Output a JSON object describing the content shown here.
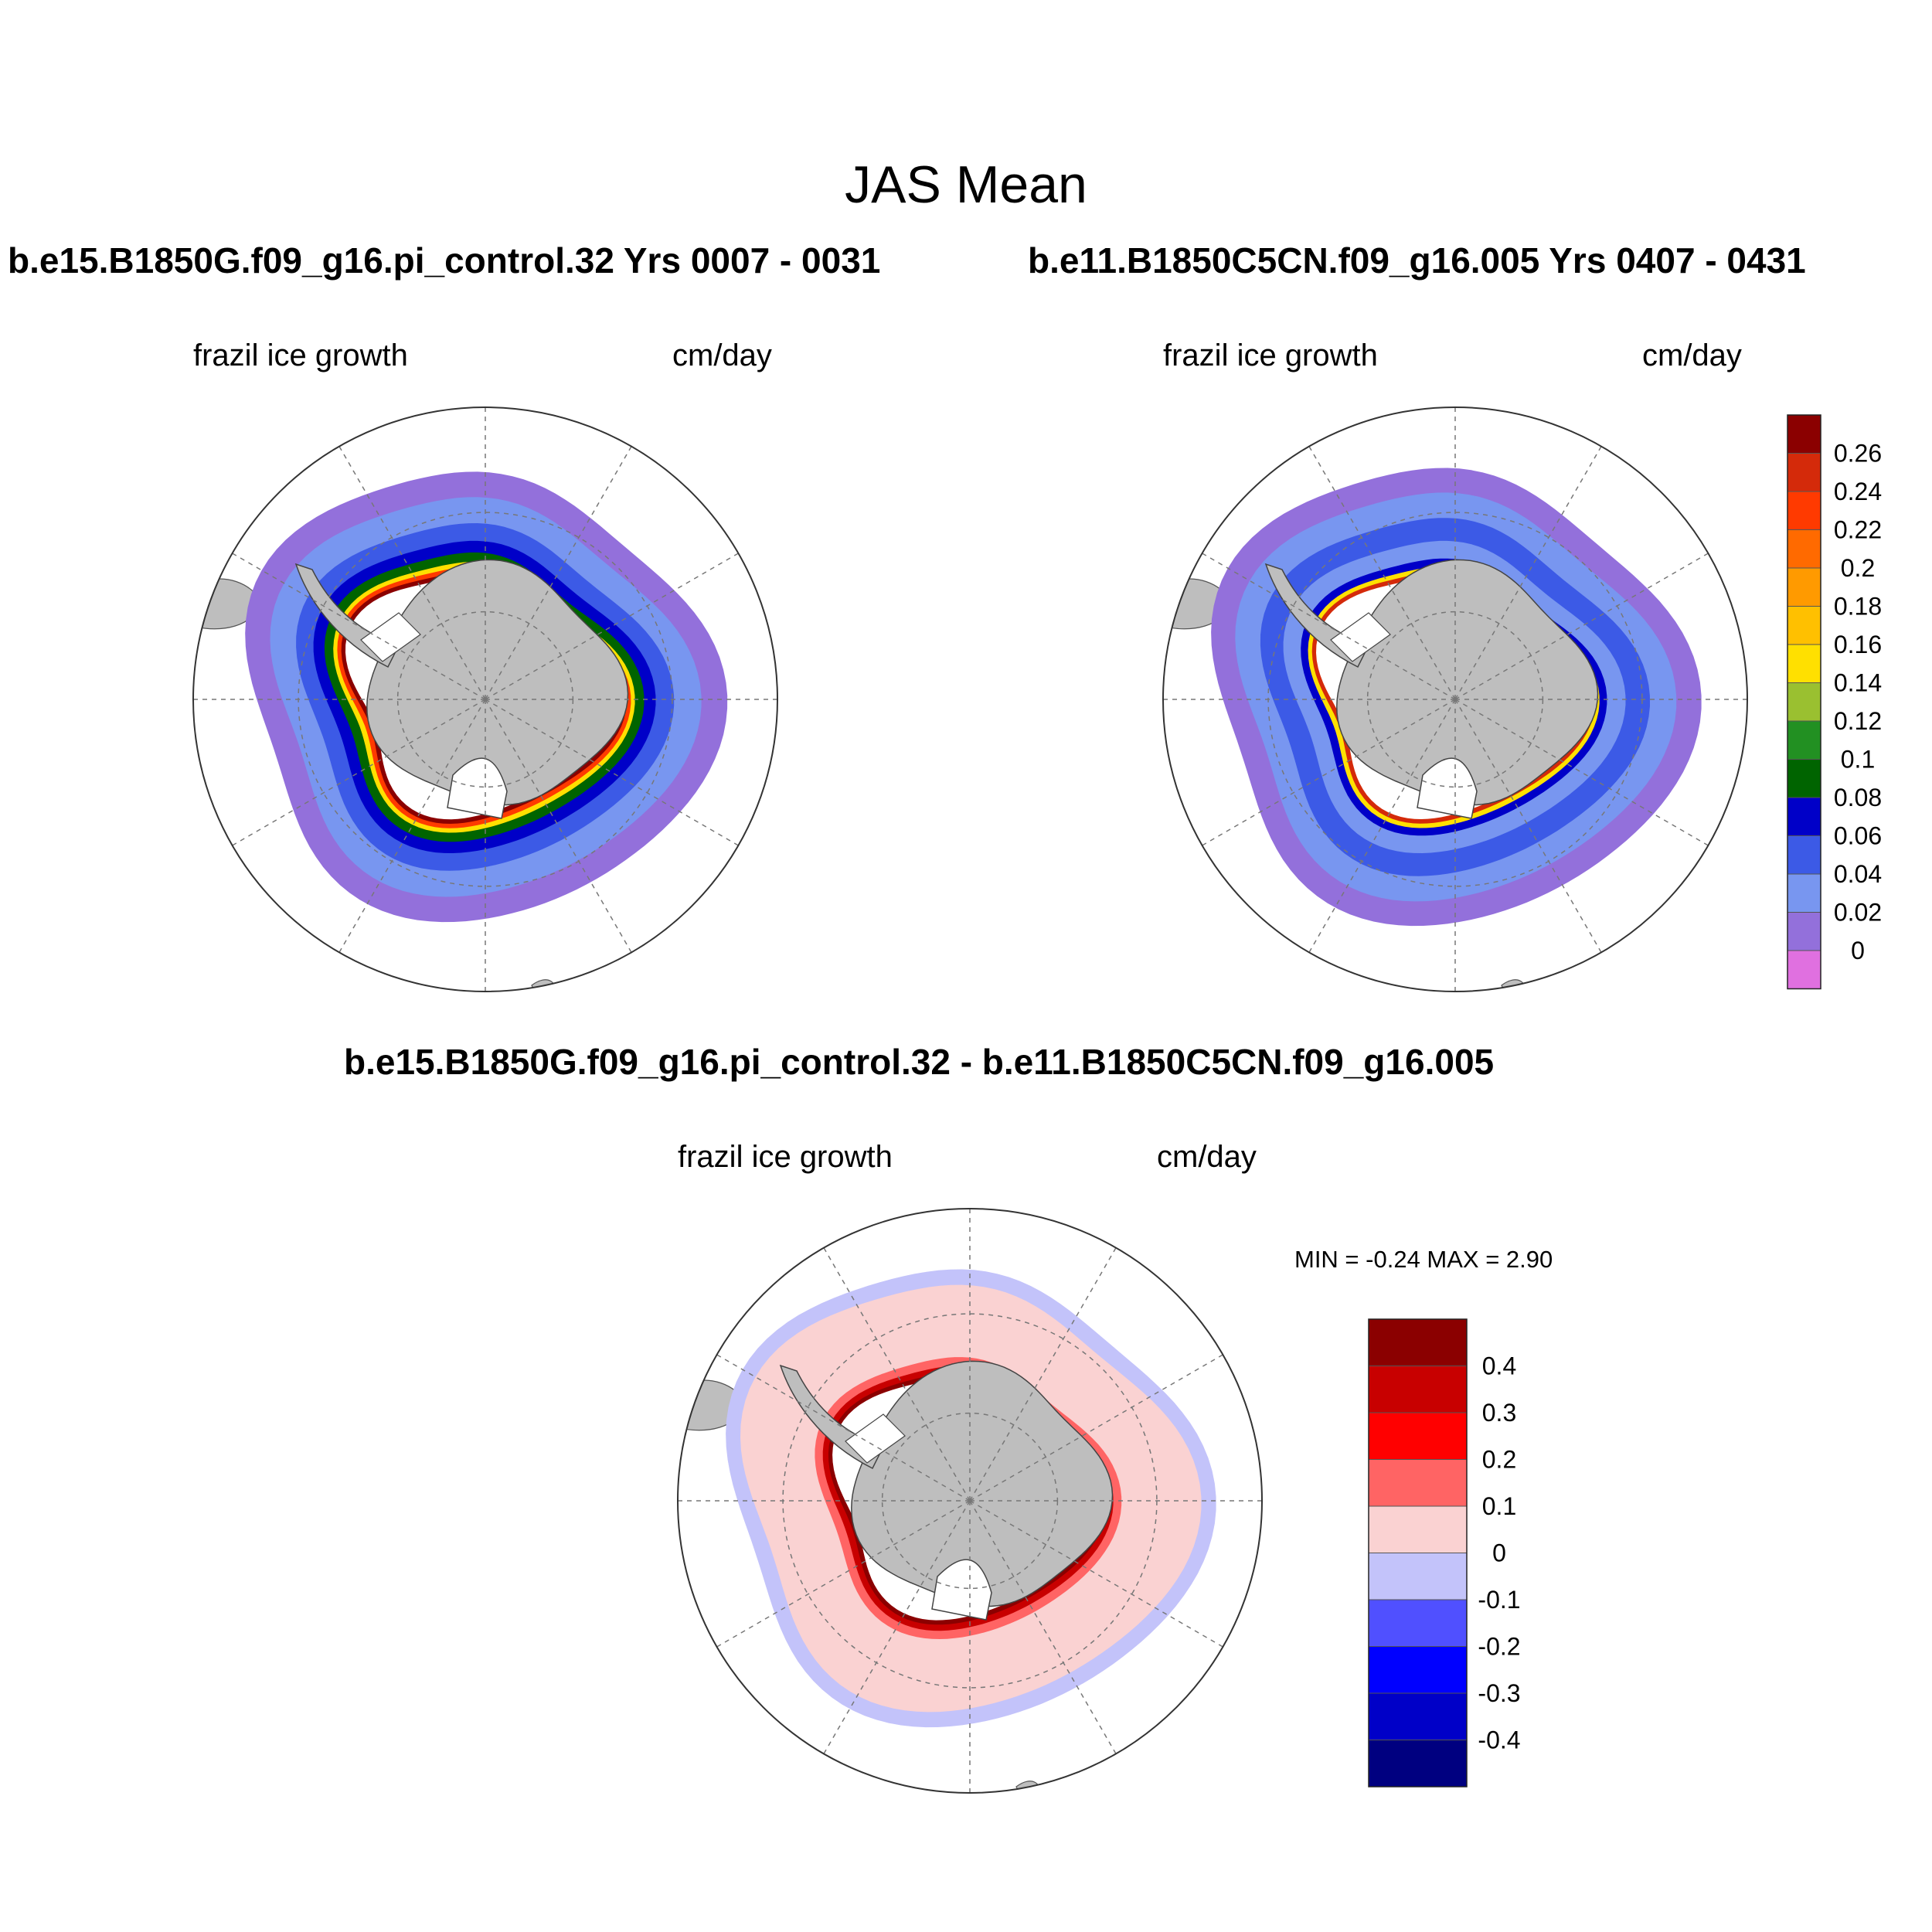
{
  "figure": {
    "title": "JAS Mean"
  },
  "panels": [
    {
      "id": "panel-1",
      "title": "b.e15.B1850G.f09_g16.pi_control.32  Yrs 0007 - 0031",
      "left_label": "frazil ice growth",
      "right_label": "cm/day"
    },
    {
      "id": "panel-2",
      "title": "b.e11.B1850C5CN.f09_g16.005  Yrs 0407 - 0431",
      "left_label": "frazil ice growth",
      "right_label": "cm/day"
    },
    {
      "id": "panel-diff",
      "title": "b.e15.B1850G.f09_g16.pi_control.32 - b.e11.B1850C5CN.f09_g16.005",
      "left_label": "frazil ice growth",
      "right_label": "cm/day",
      "min_max": "MIN =  -0.24 MAX =   2.90"
    }
  ],
  "colorbar_main": {
    "labels": [
      "0.26",
      "0.24",
      "0.22",
      "0.2",
      "0.18",
      "0.16",
      "0.14",
      "0.12",
      "0.1",
      "0.08",
      "0.06",
      "0.04",
      "0.02",
      "0"
    ],
    "colors": [
      "#8b0000",
      "#d42a0a",
      "#ff3a00",
      "#ff6a00",
      "#ff9a00",
      "#ffc000",
      "#ffe000",
      "#9ac030",
      "#229022",
      "#006400",
      "#0000c8",
      "#3c5ae6",
      "#7896f0",
      "#9370db",
      "#e070e0"
    ]
  },
  "colorbar_diff": {
    "labels": [
      "0.4",
      "0.3",
      "0.2",
      "0.1",
      "0",
      "-0.1",
      "-0.2",
      "-0.3",
      "-0.4"
    ],
    "colors": [
      "#8b0000",
      "#c80000",
      "#ff0000",
      "#ff6464",
      "#fad2d2",
      "#c3c3fa",
      "#5050ff",
      "#0000ff",
      "#0000c8",
      "#000080"
    ]
  },
  "map_colors": {
    "land": "#bebebe",
    "shelf_ice": "#ffffff",
    "grid": "#777777"
  }
}
